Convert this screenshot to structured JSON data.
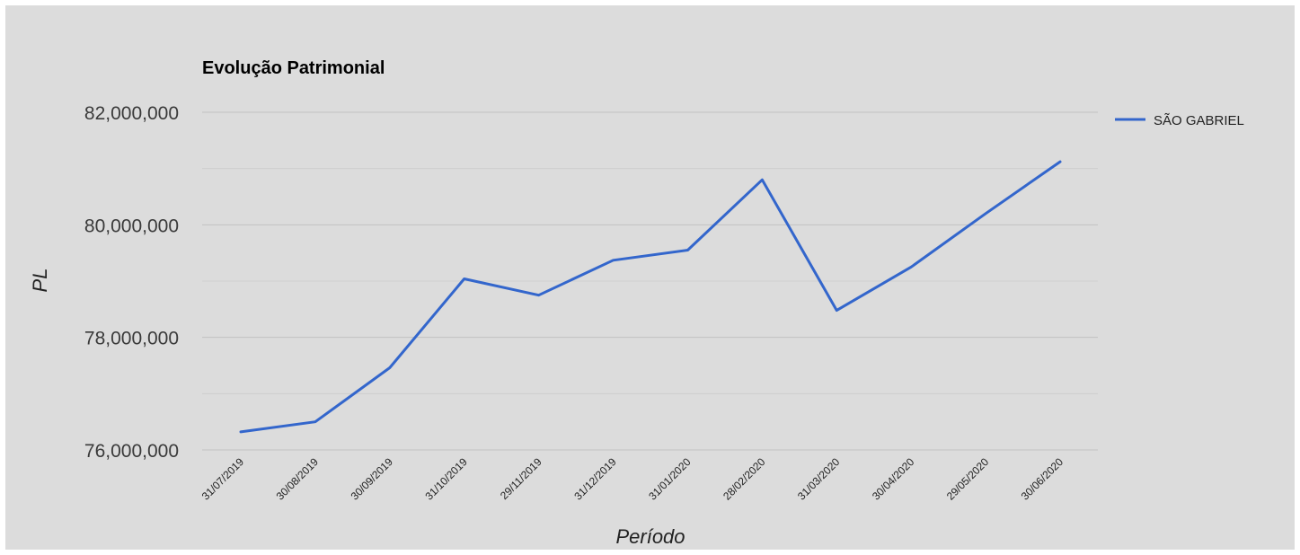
{
  "chart_data": {
    "type": "line",
    "title": "Evolução Patrimonial",
    "xlabel": "Período",
    "ylabel": "PL",
    "ylim": [
      76000000,
      82000000
    ],
    "yticks": [
      76000000,
      78000000,
      80000000,
      82000000
    ],
    "ytick_labels": [
      "76,000,000",
      "78,000,000",
      "80,000,000",
      "82,000,000"
    ],
    "categories": [
      "31/07/2019",
      "30/08/2019",
      "30/09/2019",
      "31/10/2019",
      "29/11/2019",
      "31/12/2019",
      "31/01/2020",
      "28/02/2020",
      "31/03/2020",
      "30/04/2020",
      "29/05/2020",
      "30/06/2020"
    ],
    "series": [
      {
        "name": "SÃO GABRIEL",
        "color": "#3366cc",
        "values": [
          76320000,
          76500000,
          77460000,
          79040000,
          78750000,
          79370000,
          79550000,
          80800000,
          78480000,
          79250000,
          80200000,
          81120000
        ]
      }
    ],
    "grid": true,
    "legend_position": "right"
  }
}
